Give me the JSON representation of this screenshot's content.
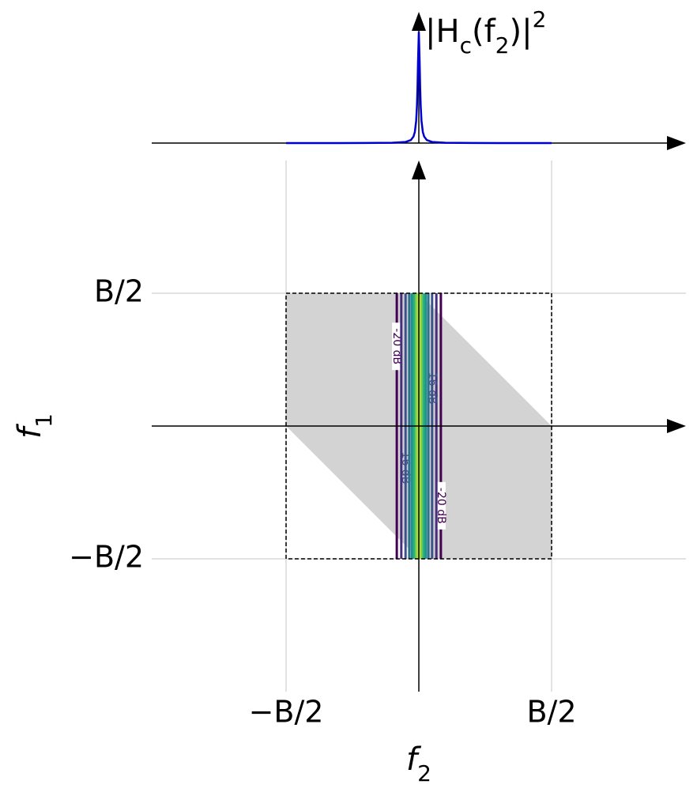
{
  "chart_data": [
    {
      "type": "line",
      "title": [
        {
          "text": "|H"
        },
        {
          "text": "c",
          "sub": true
        },
        {
          "text": "(f"
        },
        {
          "text": "2",
          "sub": true
        },
        {
          "text": ")|"
        },
        {
          "text": "2",
          "sup": true
        }
      ],
      "x": [
        -0.5,
        -0.3,
        -0.2,
        -0.1,
        -0.05,
        -0.03,
        -0.02,
        -0.015,
        -0.01,
        -0.007,
        -0.005,
        -0.003,
        0,
        0.003,
        0.005,
        0.007,
        0.01,
        0.015,
        0.02,
        0.03,
        0.05,
        0.1,
        0.2,
        0.3,
        0.5
      ],
      "series": [
        {
          "color": "#0000cc",
          "values": [
            0.0001,
            0.0003,
            0.0006,
            0.0025,
            0.0099,
            0.027,
            0.059,
            0.1,
            0.2,
            0.338,
            0.5,
            0.735,
            1,
            0.735,
            0.5,
            0.338,
            0.2,
            0.1,
            0.059,
            0.027,
            0.0099,
            0.0025,
            0.0006,
            0.0003,
            0.0001
          ]
        }
      ],
      "xlim": [
        -1.006,
        1.006
      ],
      "ylim": [
        0,
        1.18
      ]
    },
    {
      "type": "contour",
      "xlabel": [
        {
          "text": "f"
        },
        {
          "text": "2",
          "sub": true
        }
      ],
      "ylabel": [
        {
          "text": "f"
        },
        {
          "text": "1",
          "sub": true
        }
      ],
      "xlim": [
        -1.006,
        1.006
      ],
      "ylim": [
        -1,
        1
      ],
      "xticks": [
        {
          "value": -0.5,
          "label": "−B/2"
        },
        {
          "value": 0.5,
          "label": "B/2"
        }
      ],
      "yticks": [
        {
          "value": -0.5,
          "label": "−B/2"
        },
        {
          "value": 0.5,
          "label": "B/2"
        }
      ],
      "grid": true,
      "region": {
        "color": "#d3d3d3",
        "x": [
          -0.5,
          0,
          0.5,
          0.5,
          0,
          -0.5
        ],
        "y": [
          0.5,
          0.5,
          0,
          -0.5,
          -0.5,
          0
        ]
      },
      "contours": [
        {
          "label": "-20 dB",
          "halfwidth": 0.083,
          "color": "#440154"
        },
        {
          "halfwidth": 0.066,
          "color": "#472d7b"
        },
        {
          "label": "-16 dB",
          "halfwidth": 0.05,
          "color": "#3b528b"
        },
        {
          "halfwidth": 0.036,
          "color": "#2c728e"
        },
        {
          "halfwidth": 0.026,
          "color": "#21918c"
        },
        {
          "halfwidth": 0.018,
          "color": "#28ae80"
        },
        {
          "halfwidth": 0.011,
          "color": "#5ec962"
        },
        {
          "halfwidth": 0.005,
          "color": "#addc30"
        }
      ],
      "peak_color": "#fde725"
    }
  ]
}
